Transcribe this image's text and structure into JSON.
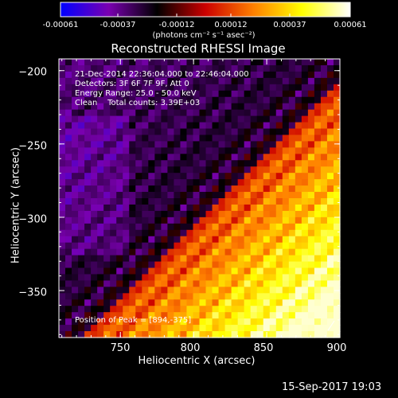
{
  "colorbar": {
    "ticks": [
      "-0.00061",
      "-0.00037",
      "-0.00012",
      "0.00012",
      "0.00037",
      "0.00061"
    ],
    "unit_label": "(photons cm⁻² s⁻¹ asec⁻²)",
    "range": [
      -0.00061,
      0.00061
    ]
  },
  "annotations": {
    "time": "21-Dec-2014 22:36:04.000 to 22:46:04.000",
    "detectors": "Detectors: 3F 6F 7F 9F, Att 0",
    "energy": "Energy Range: 25.0 - 50.0 keV",
    "clean": "Clean    Total counts: 3.39E+03",
    "peak": "Position of Peak = [894,-375]"
  },
  "footer": {
    "date": "15-Sep-2017 19:03"
  },
  "chart_data": {
    "type": "heatmap",
    "title": "Reconstructed RHESSI Image",
    "xlabel": "Heliocentric X (arcsec)",
    "ylabel": "Heliocentric Y (arcsec)",
    "xlim": [
      708,
      900
    ],
    "ylim": [
      -382,
      -192
    ],
    "x_ticks": [
      750,
      800,
      850,
      900
    ],
    "y_ticks": [
      -200,
      -250,
      -300,
      -350
    ],
    "x_tick_labels": [
      "750",
      "800",
      "850",
      "900"
    ],
    "y_tick_labels": [
      "−200",
      "−250",
      "−300",
      "−350"
    ],
    "peak": {
      "x": 894,
      "y": -375
    },
    "colormap": [
      "#0000ff",
      "#7a00b0",
      "#000000",
      "#cc0000",
      "#ff8000",
      "#ffff00",
      "#ffffff"
    ]
  }
}
